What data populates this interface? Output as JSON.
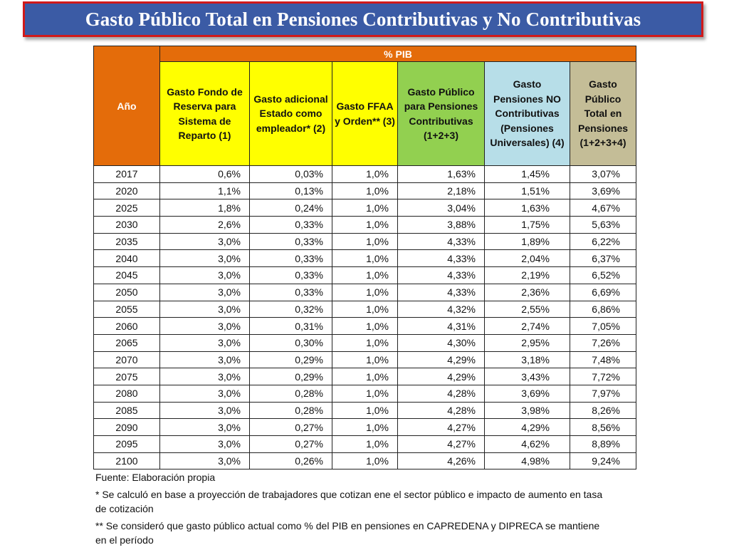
{
  "title": "Gasto Público Total en Pensiones Contributivas y No Contributivas",
  "table": {
    "band_label": "% PIB",
    "year_header": "Año",
    "columns": [
      "Gasto Fondo de Reserva para Sistema de Reparto (1)",
      "Gasto adicional Estado como empleador* (2)",
      "Gasto FFAA y Orden** (3)",
      "Gasto Público para Pensiones Contributivas (1+2+3)",
      "Gasto Pensiones NO Contributivas (Pensiones Universales) (4)",
      "Gasto Público Total en Pensiones (1+2+3+4)"
    ],
    "header_colors": {
      "band": "#e46c0a",
      "yellow": "#ffff00",
      "green": "#92d050",
      "blue": "#b7dee8",
      "tan": "#c4bd97"
    },
    "rows": [
      [
        "2017",
        "0,6%",
        "0,03%",
        "1,0%",
        "1,63%",
        "1,45%",
        "3,07%"
      ],
      [
        "2020",
        "1,1%",
        "0,13%",
        "1,0%",
        "2,18%",
        "1,51%",
        "3,69%"
      ],
      [
        "2025",
        "1,8%",
        "0,24%",
        "1,0%",
        "3,04%",
        "1,63%",
        "4,67%"
      ],
      [
        "2030",
        "2,6%",
        "0,33%",
        "1,0%",
        "3,88%",
        "1,75%",
        "5,63%"
      ],
      [
        "2035",
        "3,0%",
        "0,33%",
        "1,0%",
        "4,33%",
        "1,89%",
        "6,22%"
      ],
      [
        "2040",
        "3,0%",
        "0,33%",
        "1,0%",
        "4,33%",
        "2,04%",
        "6,37%"
      ],
      [
        "2045",
        "3,0%",
        "0,33%",
        "1,0%",
        "4,33%",
        "2,19%",
        "6,52%"
      ],
      [
        "2050",
        "3,0%",
        "0,33%",
        "1,0%",
        "4,33%",
        "2,36%",
        "6,69%"
      ],
      [
        "2055",
        "3,0%",
        "0,32%",
        "1,0%",
        "4,32%",
        "2,55%",
        "6,86%"
      ],
      [
        "2060",
        "3,0%",
        "0,31%",
        "1,0%",
        "4,31%",
        "2,74%",
        "7,05%"
      ],
      [
        "2065",
        "3,0%",
        "0,30%",
        "1,0%",
        "4,30%",
        "2,95%",
        "7,26%"
      ],
      [
        "2070",
        "3,0%",
        "0,29%",
        "1,0%",
        "4,29%",
        "3,18%",
        "7,48%"
      ],
      [
        "2075",
        "3,0%",
        "0,29%",
        "1,0%",
        "4,29%",
        "3,43%",
        "7,72%"
      ],
      [
        "2080",
        "3,0%",
        "0,28%",
        "1,0%",
        "4,28%",
        "3,69%",
        "7,97%"
      ],
      [
        "2085",
        "3,0%",
        "0,28%",
        "1,0%",
        "4,28%",
        "3,98%",
        "8,26%"
      ],
      [
        "2090",
        "3,0%",
        "0,27%",
        "1,0%",
        "4,27%",
        "4,29%",
        "8,56%"
      ],
      [
        "2095",
        "3,0%",
        "0,27%",
        "1,0%",
        "4,27%",
        "4,62%",
        "8,89%"
      ],
      [
        "2100",
        "3,0%",
        "0,26%",
        "1,0%",
        "4,26%",
        "4,98%",
        "9,24%"
      ]
    ]
  },
  "notes": {
    "source": "Fuente: Elaboración propia",
    "note1": "* Se calculó en base a proyección de trabajadores que cotizan ene el sector público e impacto de aumento en tasa de cotización",
    "note2": "** Se consideró que gasto público actual como % del PIB en pensiones en CAPREDENA y DIPRECA se mantiene en el período"
  }
}
